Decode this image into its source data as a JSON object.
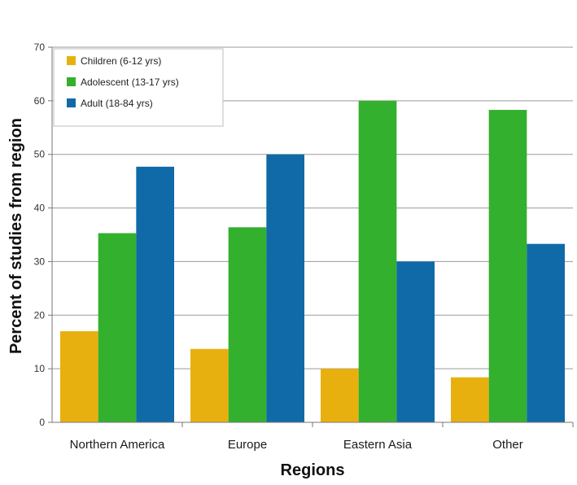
{
  "chart_data": {
    "type": "bar",
    "categories": [
      "Northern America",
      "Europe",
      "Eastern Asia",
      "Other"
    ],
    "series": [
      {
        "name": "Children (6-12 yrs)",
        "color": "#e8b00f",
        "values": [
          17,
          13.7,
          10,
          8.4
        ]
      },
      {
        "name": "Adolescent (13-17 yrs)",
        "color": "#33b02e",
        "values": [
          35.3,
          36.4,
          60,
          58.3
        ]
      },
      {
        "name": "Adult (18-84 yrs)",
        "color": "#0f6aa7",
        "values": [
          47.7,
          50,
          30,
          33.3
        ]
      }
    ],
    "xlabel": "Regions",
    "ylabel": "Percent of studies from region",
    "ylim": [
      0,
      70
    ],
    "yticks": [
      0,
      10,
      20,
      30,
      40,
      50,
      60,
      70
    ],
    "grid": true,
    "legend_position": "top-left"
  }
}
